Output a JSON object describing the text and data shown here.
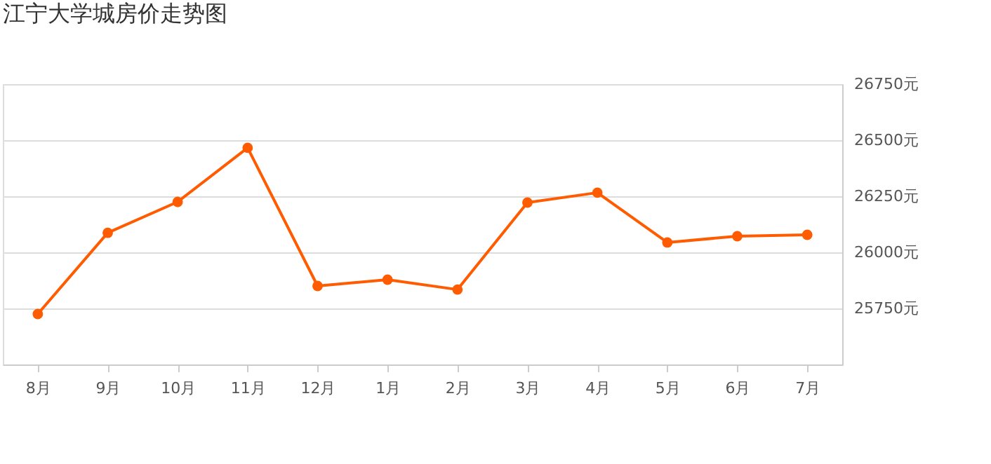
{
  "chart_data": {
    "type": "line",
    "title": "江宁大学城房价走势图",
    "categories": [
      "8月",
      "9月",
      "10月",
      "11月",
      "12月",
      "1月",
      "2月",
      "3月",
      "4月",
      "5月",
      "6月",
      "7月"
    ],
    "series": [
      {
        "color": "#ff5b00",
        "values": [
          25725,
          26087,
          26225,
          26466,
          25850,
          25878,
          25834,
          26222,
          26266,
          26044,
          26072,
          26078
        ],
        "axis": "y2"
      }
    ],
    "y2lim": [
      25500,
      26750
    ],
    "y2ticks": [
      {
        "value": 25750,
        "label": "25750元"
      },
      {
        "value": 26000,
        "label": "26000元"
      },
      {
        "value": 26250,
        "label": "26250元"
      },
      {
        "value": 26500,
        "label": "26500元"
      },
      {
        "value": 26750,
        "label": "26750元"
      }
    ],
    "grid": "y",
    "marker": "circle",
    "line_style": "solid"
  }
}
